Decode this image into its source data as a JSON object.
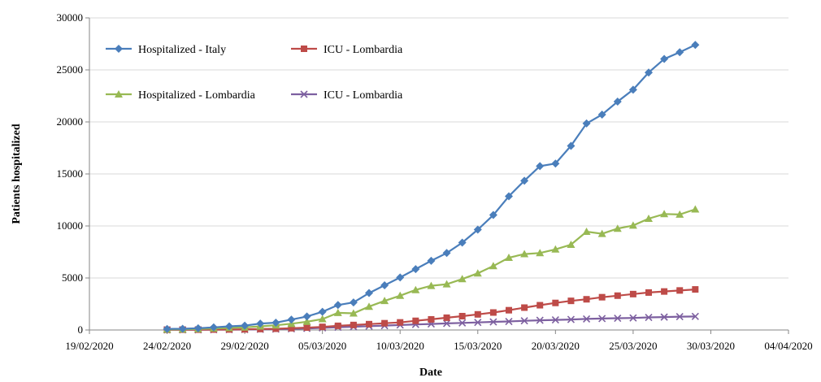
{
  "chart_data": {
    "type": "line",
    "title": "",
    "xlabel": "Date",
    "ylabel": "Patients hospitalized",
    "ylim": [
      0,
      30000
    ],
    "yticks": [
      0,
      5000,
      10000,
      15000,
      20000,
      25000,
      30000
    ],
    "xlim": [
      "19/02/2020",
      "04/04/2020"
    ],
    "xticks": [
      "19/02/2020",
      "24/02/2020",
      "29/02/2020",
      "05/03/2020",
      "10/03/2020",
      "15/03/2020",
      "20/03/2020",
      "25/03/2020",
      "30/03/2020",
      "04/04/2020"
    ],
    "grid": "horizontal",
    "legend_position": "top-left",
    "x": [
      "24/02/2020",
      "25/02/2020",
      "26/02/2020",
      "27/02/2020",
      "28/02/2020",
      "29/02/2020",
      "01/03/2020",
      "02/03/2020",
      "03/03/2020",
      "04/03/2020",
      "05/03/2020",
      "06/03/2020",
      "07/03/2020",
      "08/03/2020",
      "09/03/2020",
      "10/03/2020",
      "11/03/2020",
      "12/03/2020",
      "13/03/2020",
      "14/03/2020",
      "15/03/2020",
      "16/03/2020",
      "17/03/2020",
      "18/03/2020",
      "19/03/2020",
      "20/03/2020",
      "21/03/2020",
      "22/03/2020",
      "23/03/2020",
      "24/03/2020",
      "25/03/2020",
      "26/03/2020",
      "27/03/2020",
      "28/03/2020",
      "29/03/2020"
    ],
    "series": [
      {
        "name": "Hospitalized - Italy",
        "color": "#4a7ebb",
        "marker": "diamond",
        "values": [
          100,
          120,
          170,
          250,
          350,
          420,
          620,
          700,
          1000,
          1300,
          1750,
          2400,
          2650,
          3550,
          4300,
          5050,
          5850,
          6650,
          7400,
          8400,
          9650,
          11050,
          12850,
          14350,
          15750,
          16000,
          17700,
          19850,
          20700,
          21950,
          23100,
          24750,
          26050,
          26700,
          27400
        ]
      },
      {
        "name": "ICU - Lombardia",
        "color": "#be4b48",
        "marker": "square",
        "values": [
          20,
          25,
          30,
          40,
          50,
          60,
          90,
          120,
          170,
          230,
          300,
          400,
          480,
          560,
          650,
          730,
          880,
          1020,
          1180,
          1330,
          1500,
          1680,
          1900,
          2150,
          2380,
          2600,
          2800,
          2950,
          3150,
          3300,
          3450,
          3600,
          3700,
          3800,
          3900
        ]
      },
      {
        "name": "Hospitalized - Lombardia",
        "color": "#98b954",
        "marker": "triangle",
        "values": [
          50,
          60,
          90,
          150,
          200,
          250,
          350,
          450,
          600,
          800,
          1050,
          1650,
          1600,
          2250,
          2800,
          3300,
          3850,
          4250,
          4400,
          4900,
          5450,
          6150,
          6950,
          7300,
          7400,
          7750,
          8200,
          9450,
          9250,
          9750,
          10050,
          10700,
          11150,
          11100,
          11600
        ]
      },
      {
        "name": "ICU - Lombardia",
        "color": "#7d60a0",
        "marker": "x",
        "values": [
          10,
          12,
          15,
          20,
          30,
          40,
          60,
          80,
          110,
          150,
          200,
          260,
          310,
          370,
          420,
          480,
          530,
          580,
          630,
          680,
          730,
          780,
          820,
          880,
          930,
          970,
          1010,
          1060,
          1100,
          1130,
          1160,
          1210,
          1240,
          1280,
          1300
        ]
      }
    ]
  }
}
